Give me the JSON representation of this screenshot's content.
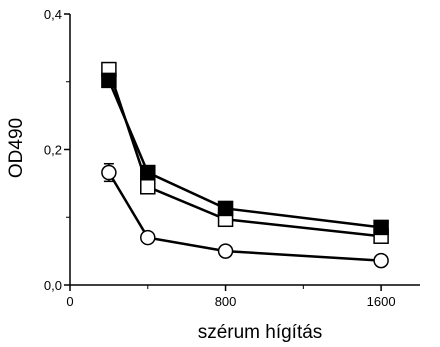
{
  "chart_data": {
    "type": "line",
    "xlabel": "szérum hígítás",
    "ylabel": "OD490",
    "xlim": [
      0,
      1800
    ],
    "ylim": [
      0,
      0.4
    ],
    "x_ticks": [
      0,
      800,
      1600
    ],
    "x_tick_labels": [
      "0",
      "800",
      "1600"
    ],
    "x_minor_ticks": [
      400,
      1200
    ],
    "y_ticks": [
      0,
      0.2,
      0.4
    ],
    "y_tick_labels": [
      "0,0",
      "0,2",
      "0,4"
    ],
    "y_minor_ticks": [
      0.1,
      0.3
    ],
    "grid": false,
    "series": [
      {
        "marker": "open-square",
        "x": [
          200,
          400,
          800,
          1600
        ],
        "values": [
          0.318,
          0.145,
          0.097,
          0.072
        ]
      },
      {
        "marker": "filled-square",
        "x": [
          200,
          400,
          800,
          1600
        ],
        "values": [
          0.302,
          0.166,
          0.113,
          0.085
        ]
      },
      {
        "marker": "open-circle",
        "x": [
          200,
          400,
          800,
          1600
        ],
        "values": [
          0.166,
          0.07,
          0.05,
          0.036
        ],
        "error": [
          0.013,
          0,
          0,
          0
        ]
      }
    ]
  }
}
